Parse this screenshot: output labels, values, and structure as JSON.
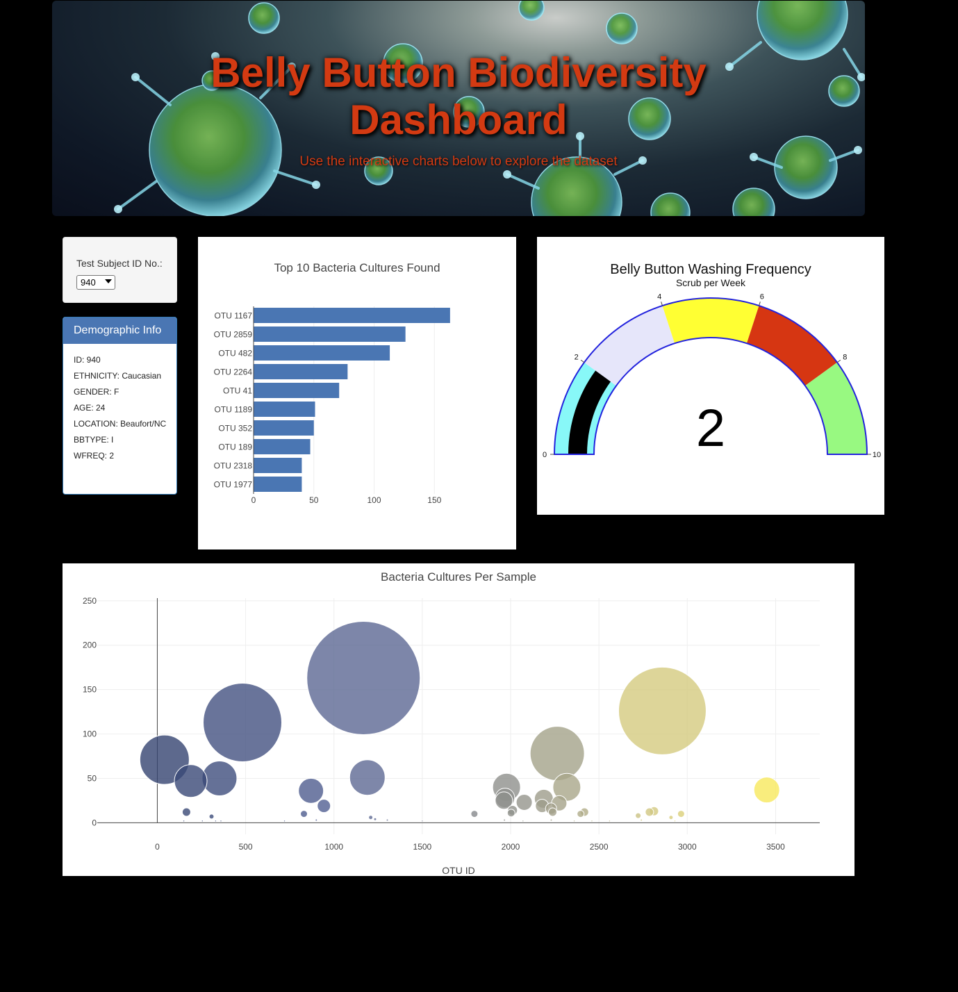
{
  "header": {
    "title": "Belly Button Biodiversity Dashboard",
    "title_line1": "Belly Button Biodiversity",
    "title_line2": "Dashboard",
    "subtitle": "Use the interactive charts below to explore the dataset"
  },
  "selector": {
    "label": "Test Subject ID No.:",
    "selected": "940"
  },
  "demographics": {
    "heading": "Demographic Info",
    "rows": [
      "ID: 940",
      "ETHNICITY: Caucasian",
      "GENDER: F",
      "AGE: 24",
      "LOCATION: Beaufort/NC",
      "BBTYPE: I",
      "WFREQ: 2"
    ]
  },
  "colors": {
    "bar": "#4a76b3",
    "accent_title": "#d33a12",
    "panel_head": "#4a76b3"
  },
  "chart_data": [
    {
      "type": "bar",
      "orientation": "horizontal",
      "title": "Top 10 Bacteria Cultures Found",
      "categories": [
        "OTU 1167",
        "OTU 2859",
        "OTU 482",
        "OTU 2264",
        "OTU 41",
        "OTU 1189",
        "OTU 352",
        "OTU 189",
        "OTU 2318",
        "OTU 1977"
      ],
      "values": [
        163,
        126,
        113,
        78,
        71,
        51,
        50,
        47,
        40,
        40
      ],
      "xlim": [
        0,
        170
      ],
      "xticks": [
        0,
        50,
        100,
        150
      ],
      "xlabel": "",
      "ylabel": ""
    },
    {
      "type": "gauge",
      "title": "Belly Button Washing Frequency",
      "subtitle": "Scrub per Week",
      "value": 2,
      "range": [
        0,
        10
      ],
      "ticks": [
        0,
        2,
        4,
        6,
        8,
        10
      ],
      "steps": [
        {
          "range": [
            0,
            2
          ],
          "color": "#88f8f8"
        },
        {
          "range": [
            2,
            4
          ],
          "color": "#e6e6fa"
        },
        {
          "range": [
            4,
            6
          ],
          "color": "#ffff33"
        },
        {
          "range": [
            6,
            8
          ],
          "color": "#d63612"
        },
        {
          "range": [
            8,
            10
          ],
          "color": "#98f981"
        }
      ],
      "bar_color": "#000000",
      "border_color": "#2222dd"
    },
    {
      "type": "scatter",
      "subtype": "bubble",
      "title": "Bacteria Cultures Per Sample",
      "xlabel": "OTU ID",
      "ylabel": "",
      "xlim": [
        -340,
        3750
      ],
      "ylim": [
        -13,
        253
      ],
      "xticks": [
        0,
        500,
        1000,
        1500,
        2000,
        2500,
        3000,
        3500
      ],
      "yticks": [
        0,
        50,
        100,
        150,
        200,
        250
      ],
      "points": [
        {
          "x": 41,
          "y": 71
        },
        {
          "x": 189,
          "y": 47
        },
        {
          "x": 352,
          "y": 50
        },
        {
          "x": 482,
          "y": 113
        },
        {
          "x": 165,
          "y": 12
        },
        {
          "x": 307,
          "y": 7
        },
        {
          "x": 830,
          "y": 10
        },
        {
          "x": 870,
          "y": 36
        },
        {
          "x": 943,
          "y": 19
        },
        {
          "x": 1167,
          "y": 163
        },
        {
          "x": 1189,
          "y": 51
        },
        {
          "x": 1795,
          "y": 10
        },
        {
          "x": 1977,
          "y": 40
        },
        {
          "x": 1968,
          "y": 28
        },
        {
          "x": 1962,
          "y": 25
        },
        {
          "x": 2011,
          "y": 14
        },
        {
          "x": 2003,
          "y": 11
        },
        {
          "x": 2077,
          "y": 23
        },
        {
          "x": 2188,
          "y": 27
        },
        {
          "x": 2178,
          "y": 19
        },
        {
          "x": 2229,
          "y": 16
        },
        {
          "x": 2238,
          "y": 12
        },
        {
          "x": 2264,
          "y": 78
        },
        {
          "x": 2275,
          "y": 22
        },
        {
          "x": 2318,
          "y": 40
        },
        {
          "x": 2418,
          "y": 12
        },
        {
          "x": 2396,
          "y": 10
        },
        {
          "x": 2859,
          "y": 126
        },
        {
          "x": 2722,
          "y": 8
        },
        {
          "x": 2786,
          "y": 12
        },
        {
          "x": 2812,
          "y": 13
        },
        {
          "x": 2908,
          "y": 6
        },
        {
          "x": 2965,
          "y": 10
        },
        {
          "x": 3450,
          "y": 37
        },
        {
          "x": 1208,
          "y": 6
        },
        {
          "x": 1233,
          "y": 4
        },
        {
          "x": 1302,
          "y": 3
        },
        {
          "x": 900,
          "y": 3
        },
        {
          "x": 720,
          "y": 2
        },
        {
          "x": 1500,
          "y": 2
        },
        {
          "x": 150,
          "y": 2
        },
        {
          "x": 255,
          "y": 2
        },
        {
          "x": 330,
          "y": 2
        },
        {
          "x": 360,
          "y": 2
        },
        {
          "x": 1965,
          "y": 3
        },
        {
          "x": 2070,
          "y": 2
        },
        {
          "x": 2230,
          "y": 3
        },
        {
          "x": 2360,
          "y": 2
        },
        {
          "x": 2460,
          "y": 2
        },
        {
          "x": 2560,
          "y": 2
        },
        {
          "x": 2740,
          "y": 3
        },
        {
          "x": 2930,
          "y": 2
        }
      ]
    }
  ]
}
